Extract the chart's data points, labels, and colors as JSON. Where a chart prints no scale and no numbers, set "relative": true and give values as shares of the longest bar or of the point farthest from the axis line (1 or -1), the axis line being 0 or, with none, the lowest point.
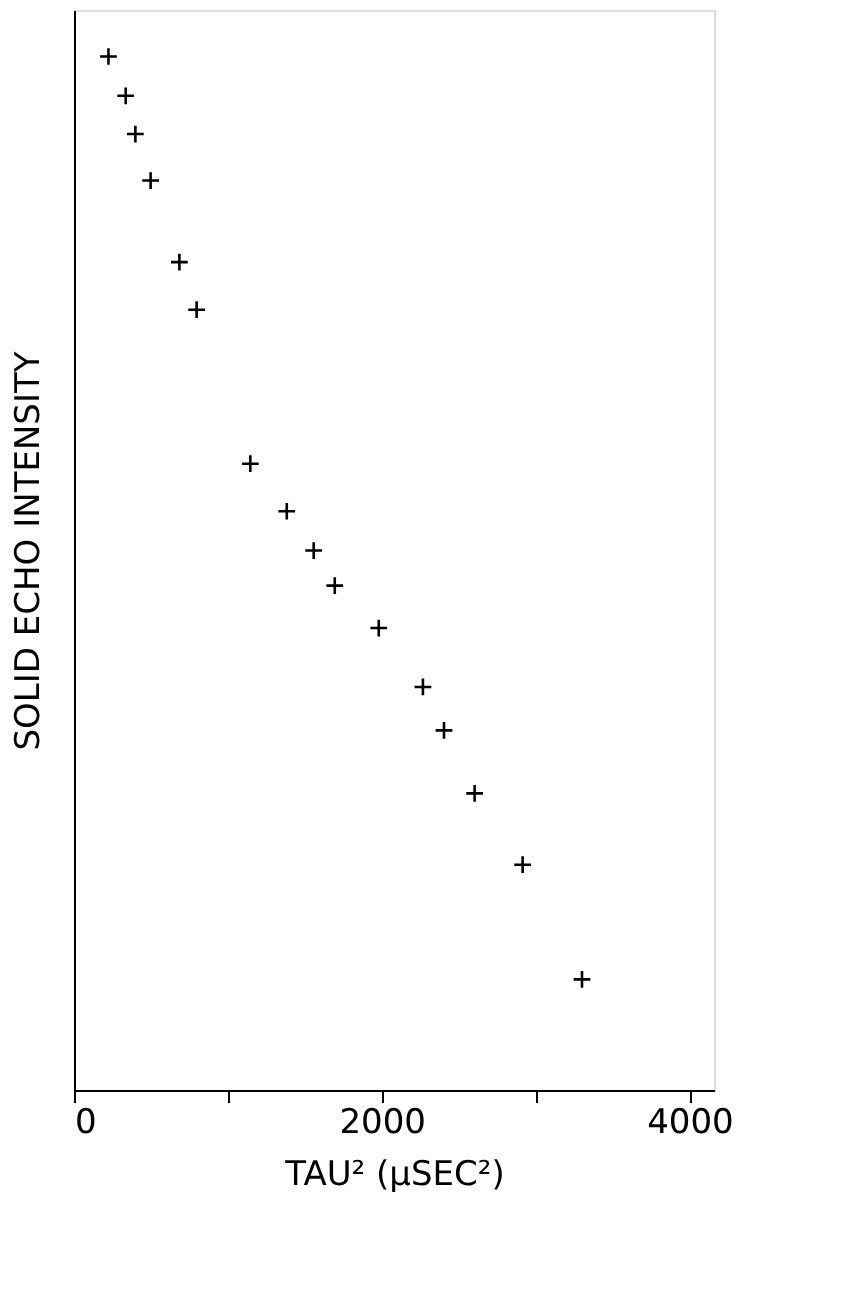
{
  "chart_data": {
    "type": "scatter",
    "xlabel": "TAU² (μSEC²)",
    "ylabel": "SOLID ECHO INTENSITY",
    "x": [
      224,
      336,
      399,
      498,
      685,
      797,
      1146,
      1383,
      1558,
      1695,
      1981,
      2268,
      2405,
      2604,
      2916,
      3302
    ],
    "values": [
      1,
      0.962,
      0.925,
      0.88,
      0.801,
      0.755,
      0.606,
      0.56,
      0.522,
      0.488,
      0.447,
      0.39,
      0.348,
      0.287,
      0.218,
      0.107
    ],
    "relative": true,
    "color": "#000000",
    "marker": "cross",
    "grid": false,
    "tick_labels": "x",
    "xlim": [
      0,
      4160
    ],
    "xticks": [
      0,
      {
        "value": 1000,
        "label": null
      },
      2000,
      {
        "value": 3000,
        "label": null
      },
      4000
    ]
  }
}
